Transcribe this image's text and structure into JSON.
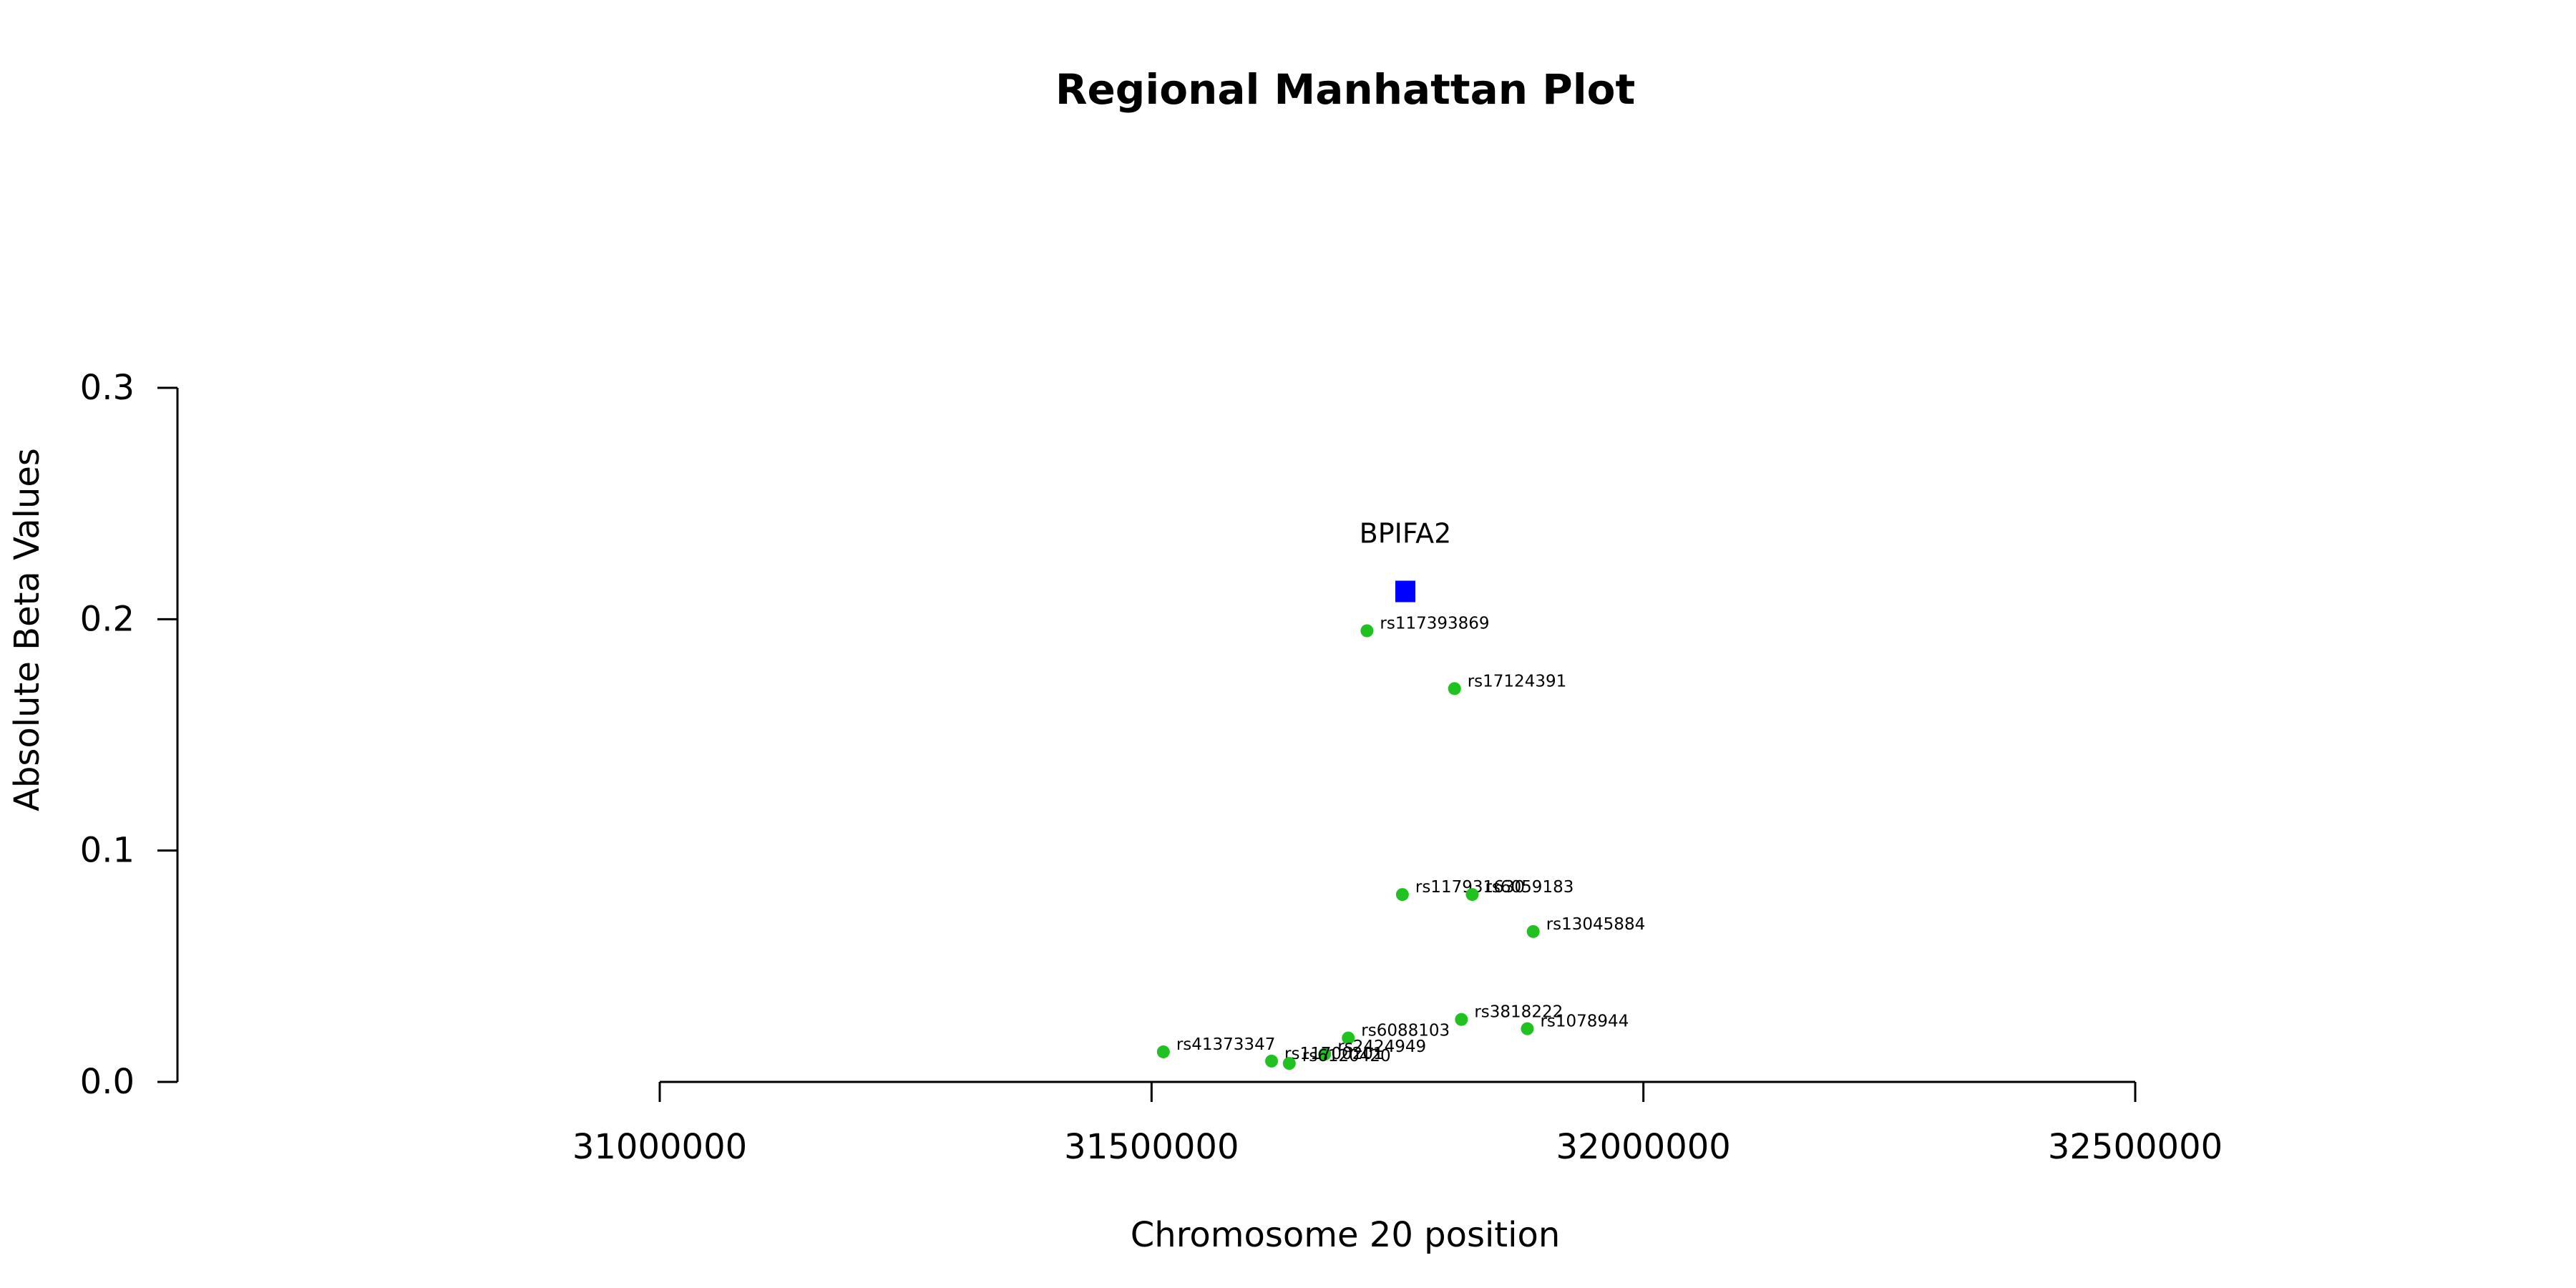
{
  "chart_data": {
    "type": "scatter",
    "title": "Regional Manhattan Plot",
    "xlabel": "Chromosome 20 position",
    "ylabel": "Absolute Beta Values",
    "xlim": [
      31000000,
      32500000
    ],
    "ylim": [
      0,
      0.3
    ],
    "x_ticks": [
      "31000000",
      "31500000",
      "32000000",
      "32500000"
    ],
    "y_ticks": [
      "0.0",
      "0.1",
      "0.2",
      "0.3"
    ],
    "grid": false,
    "colors": {
      "snp": "#1fc21f",
      "gene": "#0000ff"
    },
    "gene": {
      "name": "BPIFA2",
      "x": 31758000,
      "y": 0.212,
      "marker": "square"
    },
    "series": [
      {
        "marker": "circle",
        "points": [
          {
            "label": "rs117393869",
            "x": 31719000,
            "y": 0.195
          },
          {
            "label": "rs17124391",
            "x": 31808000,
            "y": 0.17
          },
          {
            "label": "rs117931630",
            "x": 31755000,
            "y": 0.081
          },
          {
            "label": "rs6059183",
            "x": 31826000,
            "y": 0.081
          },
          {
            "label": "rs13045884",
            "x": 31888000,
            "y": 0.065
          },
          {
            "label": "rs3818222",
            "x": 31815000,
            "y": 0.027
          },
          {
            "label": "rs1078944",
            "x": 31882000,
            "y": 0.023
          },
          {
            "label": "rs6088103",
            "x": 31700000,
            "y": 0.019
          },
          {
            "label": "rs2424949",
            "x": 31676000,
            "y": 0.012
          },
          {
            "label": "rs41373347",
            "x": 31512000,
            "y": 0.013
          },
          {
            "label": "rs11700201",
            "x": 31622000,
            "y": 0.009
          },
          {
            "label": "rs6120420",
            "x": 31640000,
            "y": 0.008
          }
        ]
      }
    ]
  }
}
